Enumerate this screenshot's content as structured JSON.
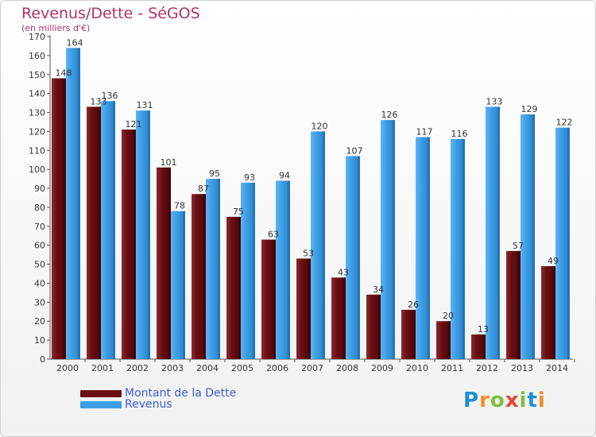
{
  "title": "Revenus/Dette - SéGOS",
  "subtitle": "(en milliers d'€)",
  "logo": {
    "text": "Proxiti",
    "letters": [
      "P",
      "r",
      "o",
      "x",
      "i",
      "t",
      "i"
    ],
    "colors": [
      "#1e8fd6",
      "#f28c28",
      "#7cbf3b",
      "#e8452c",
      "#7cbf3b",
      "#1e8fd6",
      "#f28c28"
    ]
  },
  "colors": {
    "debt": "#6b0f14",
    "revenue": "#3d9ee6",
    "title": "#b0326b",
    "legend_text": "#3d5bd6"
  },
  "chart_data": {
    "type": "bar",
    "title": "Revenus/Dette - SéGOS",
    "ylabel": "(en milliers d'€)",
    "xlabel": "",
    "ylim": [
      0,
      170
    ],
    "ytick_step": 10,
    "grid": false,
    "legend_position": "bottom-left",
    "categories": [
      "2000",
      "2001",
      "2002",
      "2003",
      "2004",
      "2005",
      "2006",
      "2007",
      "2008",
      "2009",
      "2010",
      "2011",
      "2012",
      "2013",
      "2014"
    ],
    "series": [
      {
        "name": "Montant de la Dette",
        "color": "#6b0f14",
        "values": [
          148,
          133,
          121,
          101,
          87,
          75,
          63,
          53,
          43,
          34,
          26,
          20,
          13,
          57,
          49
        ]
      },
      {
        "name": "Revenus",
        "color": "#3d9ee6",
        "values": [
          164,
          136,
          131,
          78,
          95,
          93,
          94,
          120,
          107,
          126,
          117,
          116,
          133,
          129,
          122
        ]
      }
    ]
  }
}
